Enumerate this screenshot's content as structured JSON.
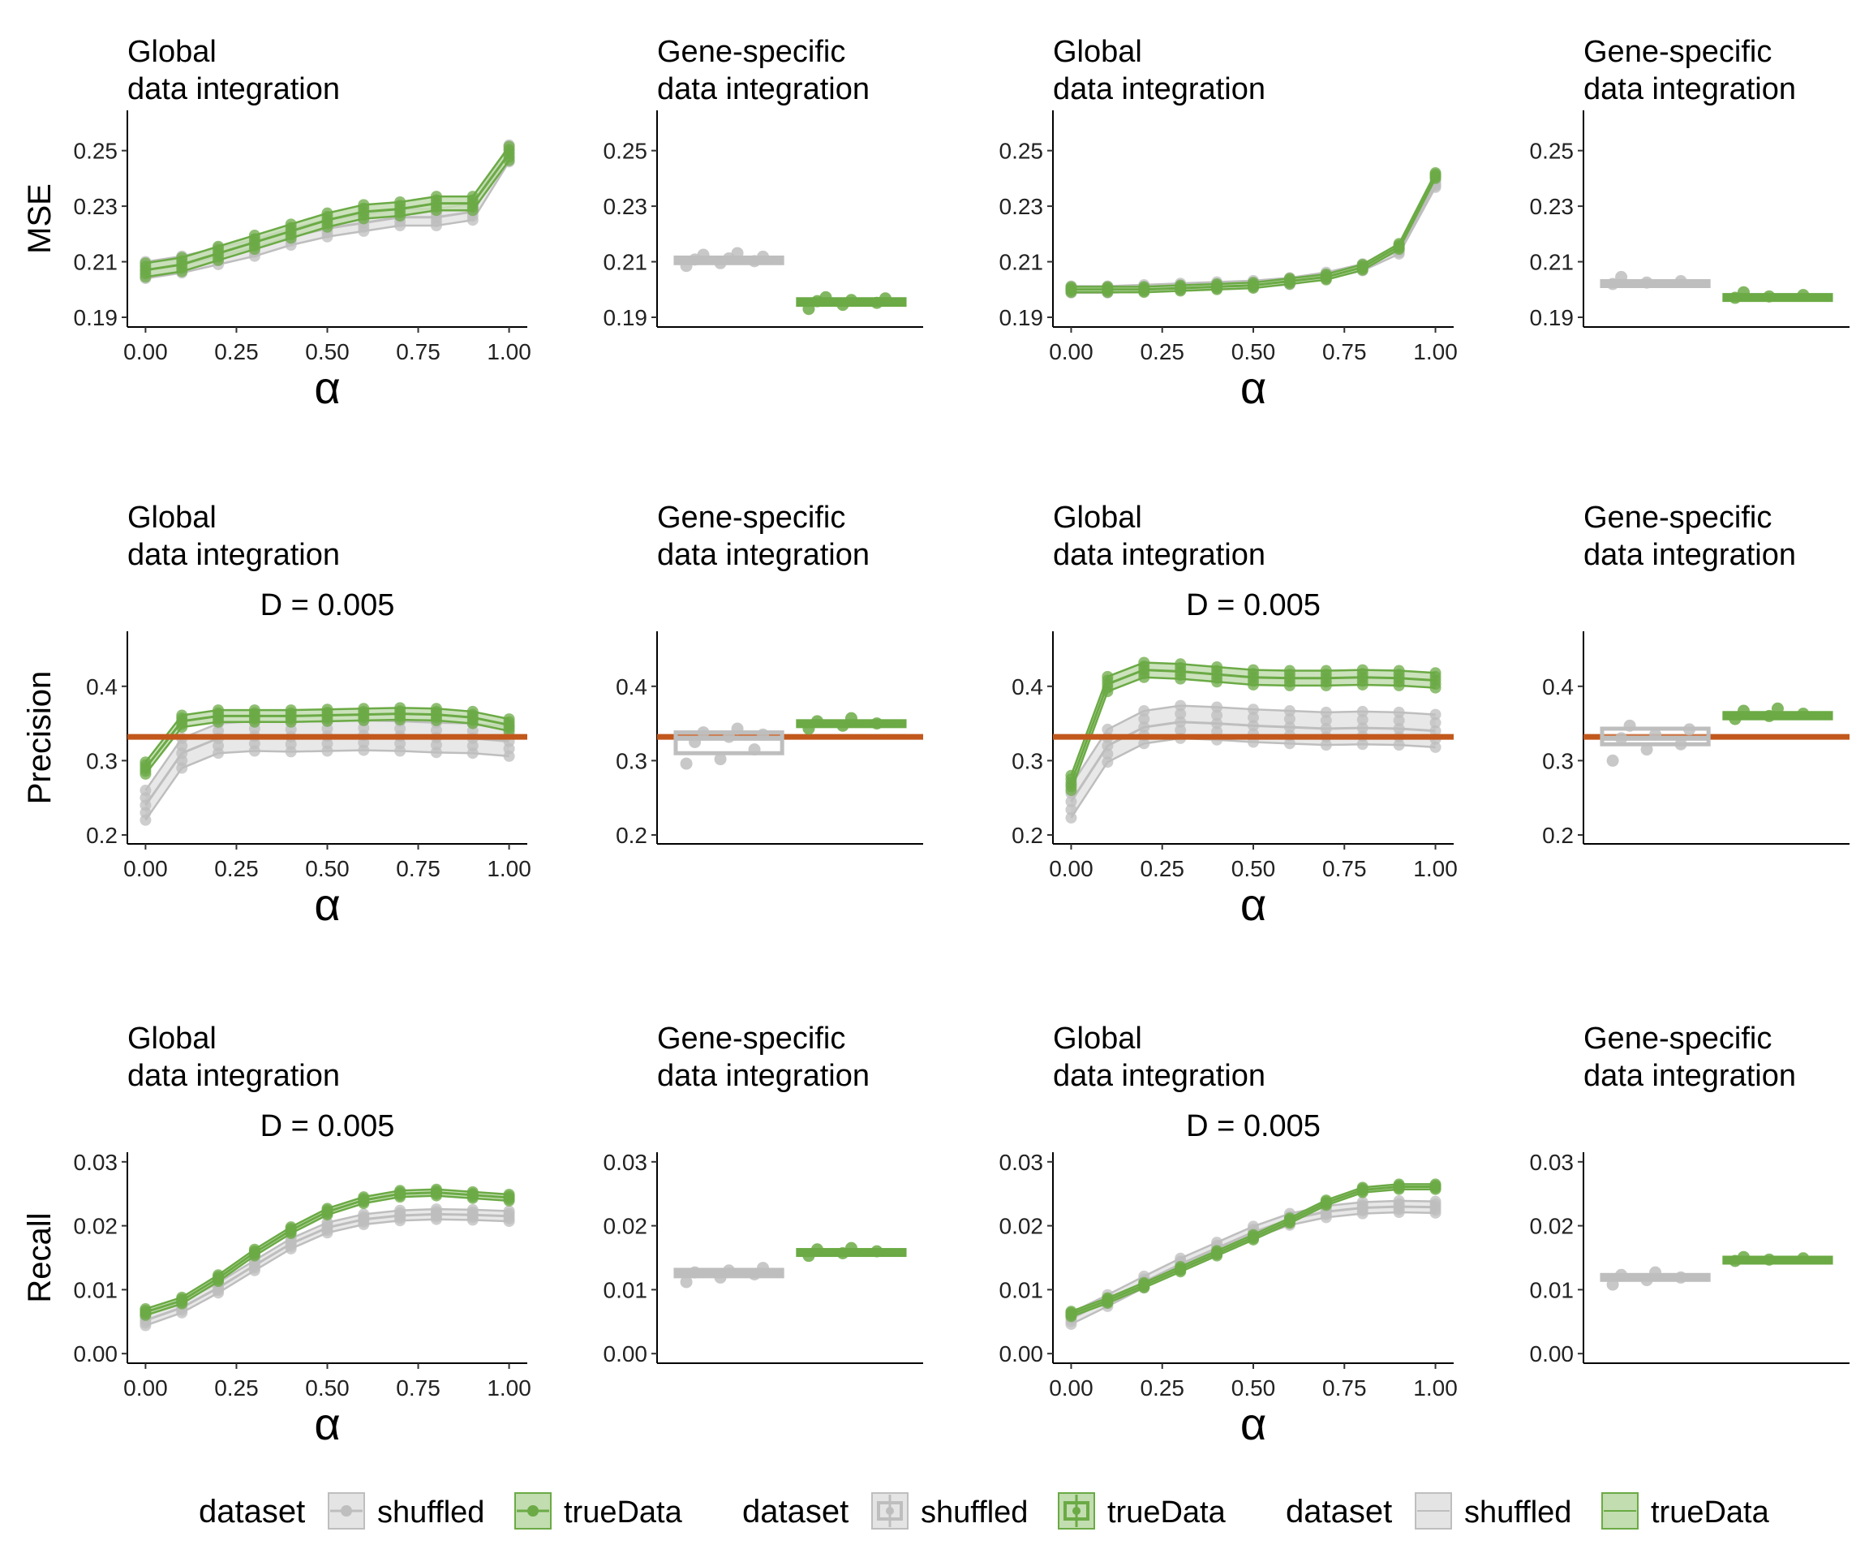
{
  "colors": {
    "shuffled": "#BEBEBE",
    "shuffled_band": "#E4E4E4",
    "trueData": "#6BAA45",
    "trueData_band": "#C2DDB0",
    "reference_line": "#C2581C",
    "axis": "#000000"
  },
  "row_titles": [
    "MSE",
    "Precision",
    "Recall"
  ],
  "column_titles": [
    [
      "Global",
      "data integration"
    ],
    [
      "Gene-specific",
      "data integration"
    ],
    [
      "Global",
      "data integration"
    ],
    [
      "Gene-specific",
      "data integration"
    ]
  ],
  "xlabel": "α",
  "legends": [
    {
      "title": "dataset",
      "items": [
        "shuffled",
        "trueData"
      ],
      "glyph": "point-line"
    },
    {
      "title": "dataset",
      "items": [
        "shuffled",
        "trueData"
      ],
      "glyph": "boxplot"
    },
    {
      "title": "dataset",
      "items": [
        "shuffled",
        "trueData"
      ],
      "glyph": "band"
    }
  ],
  "chart_data": [
    {
      "id": "mse-global-1",
      "type": "line",
      "title": [
        "Global",
        "data integration"
      ],
      "subtitle": "",
      "ylabel": "MSE",
      "xlabel": "α",
      "x": [
        0,
        0.1,
        0.2,
        0.3,
        0.4,
        0.5,
        0.6,
        0.7,
        0.8,
        0.9,
        1.0
      ],
      "xticks": [
        "0.00",
        "0.25",
        "0.50",
        "0.75",
        "1.00"
      ],
      "xlim": [
        -0.05,
        1.05
      ],
      "yticks": [
        "0.19",
        "0.21",
        "0.23",
        "0.25"
      ],
      "ylim": [
        0.1865,
        0.2645
      ],
      "series": [
        {
          "name": "shuffled",
          "values": [
            0.207,
            0.209,
            0.212,
            0.215,
            0.219,
            0.222,
            0.224,
            0.226,
            0.226,
            0.228,
            0.249
          ],
          "band": 0.003
        },
        {
          "name": "trueData",
          "values": [
            0.207,
            0.209,
            0.213,
            0.217,
            0.221,
            0.225,
            0.228,
            0.229,
            0.231,
            0.231,
            0.249
          ],
          "band": 0.0025
        }
      ]
    },
    {
      "id": "mse-gene-1",
      "type": "box",
      "title": [
        "Gene-specific",
        "data integration"
      ],
      "subtitle": "",
      "ylabel": "",
      "yticks": [
        "0.19",
        "0.21",
        "0.23",
        "0.25"
      ],
      "ylim": [
        0.1865,
        0.2645
      ],
      "boxes": [
        {
          "name": "shuffled",
          "median": 0.2105,
          "q1": 0.2095,
          "q3": 0.2115,
          "points": [
            0.2085,
            0.2095,
            0.2102,
            0.2108,
            0.2112,
            0.2118,
            0.2125,
            0.2131
          ]
        },
        {
          "name": "trueData",
          "median": 0.1955,
          "q1": 0.1945,
          "q3": 0.1965,
          "points": [
            0.193,
            0.1945,
            0.1952,
            0.1958,
            0.1962,
            0.1968,
            0.1972
          ]
        }
      ]
    },
    {
      "id": "mse-global-2",
      "type": "line",
      "title": [
        "Global",
        "data integration"
      ],
      "subtitle": "",
      "ylabel": "",
      "xlabel": "α",
      "x": [
        0,
        0.1,
        0.2,
        0.3,
        0.4,
        0.5,
        0.6,
        0.7,
        0.8,
        0.9,
        1.0
      ],
      "xticks": [
        "0.00",
        "0.25",
        "0.50",
        "0.75",
        "1.00"
      ],
      "xlim": [
        -0.05,
        1.05
      ],
      "yticks": [
        "0.19",
        "0.21",
        "0.23",
        "0.25"
      ],
      "ylim": [
        0.1865,
        0.2645
      ],
      "series": [
        {
          "name": "shuffled",
          "values": [
            0.2,
            0.2,
            0.2005,
            0.201,
            0.2015,
            0.202,
            0.203,
            0.205,
            0.208,
            0.214,
            0.238
          ],
          "band": 0.0012
        },
        {
          "name": "trueData",
          "values": [
            0.2,
            0.2,
            0.2,
            0.2005,
            0.201,
            0.2015,
            0.203,
            0.2045,
            0.208,
            0.2155,
            0.241
          ],
          "band": 0.001
        }
      ]
    },
    {
      "id": "mse-gene-2",
      "type": "box",
      "title": [
        "Gene-specific",
        "data integration"
      ],
      "subtitle": "",
      "ylabel": "",
      "yticks": [
        "0.19",
        "0.21",
        "0.23",
        "0.25"
      ],
      "ylim": [
        0.1865,
        0.2645
      ],
      "boxes": [
        {
          "name": "shuffled",
          "median": 0.2025,
          "q1": 0.202,
          "q3": 0.203,
          "points": [
            0.202,
            0.2025,
            0.203,
            0.2045
          ]
        },
        {
          "name": "trueData",
          "median": 0.1975,
          "q1": 0.197,
          "q3": 0.198,
          "points": [
            0.197,
            0.1975,
            0.198,
            0.199
          ]
        }
      ]
    },
    {
      "id": "precision-global-1",
      "type": "line",
      "title": [
        "Global",
        "data integration"
      ],
      "subtitle": "D = 0.005",
      "ylabel": "Precision",
      "xlabel": "α",
      "x": [
        0,
        0.1,
        0.2,
        0.3,
        0.4,
        0.5,
        0.6,
        0.7,
        0.8,
        0.9,
        1.0
      ],
      "xticks": [
        "0.00",
        "0.25",
        "0.50",
        "0.75",
        "1.00"
      ],
      "xlim": [
        -0.05,
        1.05
      ],
      "yticks": [
        "0.2",
        "0.3",
        "0.4"
      ],
      "ylim": [
        0.188,
        0.474
      ],
      "reference_line": 0.332,
      "series": [
        {
          "name": "shuffled",
          "values": [
            0.24,
            0.31,
            0.33,
            0.333,
            0.332,
            0.333,
            0.334,
            0.333,
            0.331,
            0.33,
            0.326
          ],
          "band": 0.02
        },
        {
          "name": "trueData",
          "values": [
            0.29,
            0.353,
            0.36,
            0.36,
            0.36,
            0.361,
            0.362,
            0.363,
            0.362,
            0.358,
            0.348
          ],
          "band": 0.008
        }
      ]
    },
    {
      "id": "precision-gene-1",
      "type": "box",
      "title": [
        "Gene-specific",
        "data integration"
      ],
      "subtitle": "",
      "ylabel": "",
      "yticks": [
        "0.2",
        "0.3",
        "0.4"
      ],
      "ylim": [
        0.188,
        0.474
      ],
      "reference_line": 0.332,
      "boxes": [
        {
          "name": "shuffled",
          "median": 0.33,
          "q1": 0.31,
          "q3": 0.338,
          "points": [
            0.296,
            0.302,
            0.315,
            0.325,
            0.332,
            0.335,
            0.338,
            0.343
          ]
        },
        {
          "name": "trueData",
          "median": 0.35,
          "q1": 0.347,
          "q3": 0.353,
          "points": [
            0.343,
            0.347,
            0.35,
            0.353,
            0.357
          ]
        }
      ]
    },
    {
      "id": "precision-global-2",
      "type": "line",
      "title": [
        "Global",
        "data integration"
      ],
      "subtitle": "D = 0.005",
      "ylabel": "",
      "xlabel": "α",
      "x": [
        0,
        0.1,
        0.2,
        0.3,
        0.4,
        0.5,
        0.6,
        0.7,
        0.8,
        0.9,
        1.0
      ],
      "xticks": [
        "0.00",
        "0.25",
        "0.50",
        "0.75",
        "1.00"
      ],
      "xlim": [
        -0.05,
        1.05
      ],
      "yticks": [
        "0.2",
        "0.3",
        "0.4"
      ],
      "ylim": [
        0.188,
        0.474
      ],
      "reference_line": 0.332,
      "series": [
        {
          "name": "shuffled",
          "values": [
            0.245,
            0.32,
            0.345,
            0.352,
            0.35,
            0.347,
            0.345,
            0.343,
            0.344,
            0.343,
            0.34
          ],
          "band": 0.022
        },
        {
          "name": "trueData",
          "values": [
            0.27,
            0.403,
            0.422,
            0.42,
            0.416,
            0.412,
            0.411,
            0.411,
            0.412,
            0.411,
            0.408
          ],
          "band": 0.01
        }
      ]
    },
    {
      "id": "precision-gene-2",
      "type": "box",
      "title": [
        "Gene-specific",
        "data integration"
      ],
      "subtitle": "",
      "ylabel": "",
      "yticks": [
        "0.2",
        "0.3",
        "0.4"
      ],
      "ylim": [
        0.188,
        0.474
      ],
      "reference_line": 0.332,
      "boxes": [
        {
          "name": "shuffled",
          "median": 0.33,
          "q1": 0.322,
          "q3": 0.343,
          "points": [
            0.3,
            0.315,
            0.322,
            0.33,
            0.335,
            0.342,
            0.347
          ]
        },
        {
          "name": "trueData",
          "median": 0.361,
          "q1": 0.357,
          "q3": 0.364,
          "points": [
            0.356,
            0.36,
            0.363,
            0.367,
            0.37
          ]
        }
      ]
    },
    {
      "id": "recall-global-1",
      "type": "line",
      "title": [
        "Global",
        "data integration"
      ],
      "subtitle": "D = 0.005",
      "ylabel": "Recall",
      "xlabel": "α",
      "x": [
        0,
        0.1,
        0.2,
        0.3,
        0.4,
        0.5,
        0.6,
        0.7,
        0.8,
        0.9,
        1.0
      ],
      "xticks": [
        "0.00",
        "0.25",
        "0.50",
        "0.75",
        "1.00"
      ],
      "xlim": [
        -0.05,
        1.05
      ],
      "yticks": [
        "0.00",
        "0.01",
        "0.02",
        "0.03"
      ],
      "ylim": [
        -0.0015,
        0.0315
      ],
      "series": [
        {
          "name": "shuffled",
          "values": [
            0.0052,
            0.0072,
            0.0103,
            0.0138,
            0.0172,
            0.0197,
            0.021,
            0.0216,
            0.0218,
            0.0217,
            0.0215
          ],
          "band": 0.0008
        },
        {
          "name": "trueData",
          "values": [
            0.0065,
            0.0083,
            0.0118,
            0.0158,
            0.0193,
            0.0222,
            0.024,
            0.025,
            0.0252,
            0.0248,
            0.0244
          ],
          "band": 0.0005
        }
      ]
    },
    {
      "id": "recall-gene-1",
      "type": "box",
      "title": [
        "Gene-specific",
        "data integration"
      ],
      "subtitle": "",
      "ylabel": "",
      "yticks": [
        "0.00",
        "0.01",
        "0.02",
        "0.03"
      ],
      "ylim": [
        -0.0015,
        0.0315
      ],
      "boxes": [
        {
          "name": "shuffled",
          "median": 0.0126,
          "q1": 0.0121,
          "q3": 0.0131,
          "points": [
            0.0112,
            0.0119,
            0.0124,
            0.0127,
            0.013,
            0.0134
          ]
        },
        {
          "name": "trueData",
          "median": 0.0159,
          "q1": 0.0156,
          "q3": 0.0162,
          "points": [
            0.0153,
            0.0157,
            0.016,
            0.0163,
            0.0165
          ]
        }
      ]
    },
    {
      "id": "recall-global-2",
      "type": "line",
      "title": [
        "Global",
        "data integration"
      ],
      "subtitle": "D = 0.005",
      "ylabel": "",
      "xlabel": "α",
      "x": [
        0,
        0.1,
        0.2,
        0.3,
        0.4,
        0.5,
        0.6,
        0.7,
        0.8,
        0.9,
        1.0
      ],
      "xticks": [
        "0.00",
        "0.25",
        "0.50",
        "0.75",
        "1.00"
      ],
      "xlim": [
        -0.05,
        1.05
      ],
      "yticks": [
        "0.00",
        "0.01",
        "0.02",
        "0.03"
      ],
      "ylim": [
        -0.0015,
        0.0315
      ],
      "series": [
        {
          "name": "shuffled",
          "values": [
            0.0055,
            0.0083,
            0.0112,
            0.014,
            0.0165,
            0.019,
            0.021,
            0.0222,
            0.0228,
            0.023,
            0.0229
          ],
          "band": 0.0009
        },
        {
          "name": "trueData",
          "values": [
            0.0062,
            0.0083,
            0.0107,
            0.0132,
            0.0157,
            0.0182,
            0.0208,
            0.0236,
            0.0256,
            0.0261,
            0.0261
          ],
          "band": 0.0004
        }
      ]
    },
    {
      "id": "recall-gene-2",
      "type": "box",
      "title": [
        "Gene-specific",
        "data integration"
      ],
      "subtitle": "",
      "ylabel": "",
      "yticks": [
        "0.00",
        "0.01",
        "0.02",
        "0.03"
      ],
      "ylim": [
        -0.0015,
        0.0315
      ],
      "boxes": [
        {
          "name": "shuffled",
          "median": 0.0119,
          "q1": 0.0116,
          "q3": 0.0123,
          "points": [
            0.0108,
            0.0115,
            0.0119,
            0.0123,
            0.0127
          ]
        },
        {
          "name": "trueData",
          "median": 0.0148,
          "q1": 0.0146,
          "q3": 0.015,
          "points": [
            0.0145,
            0.0147,
            0.0149,
            0.0151
          ]
        }
      ]
    }
  ]
}
